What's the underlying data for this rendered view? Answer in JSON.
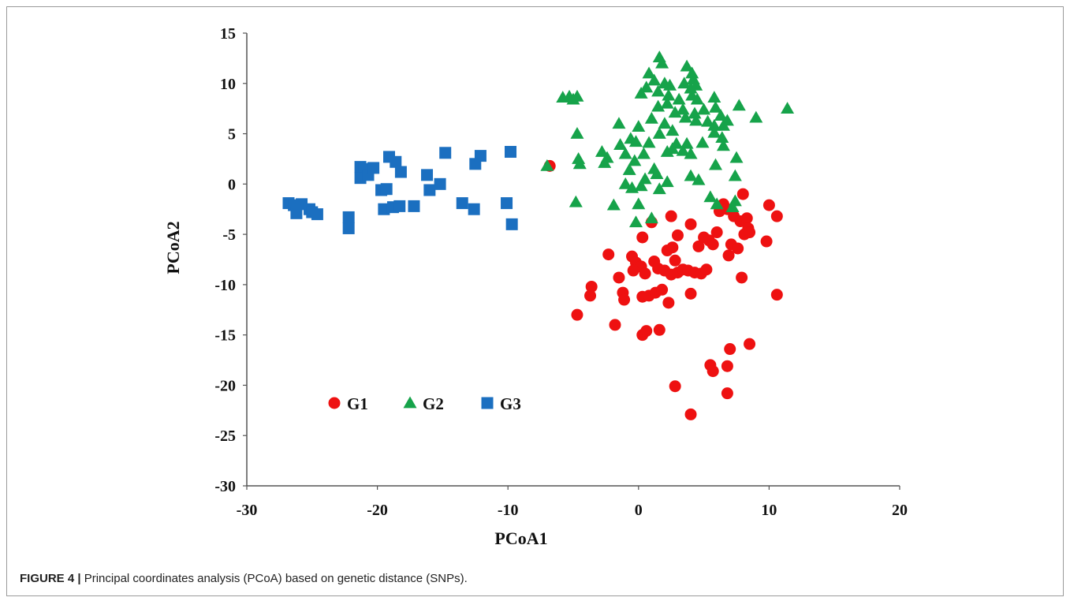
{
  "caption": {
    "label": "FIGURE 4 |",
    "text": " Principal coordinates analysis (PCoA) based on genetic distance (SNPs)."
  },
  "colors": {
    "G1": "#ee1111",
    "G2": "#16a34a",
    "G3": "#1b6fc0",
    "axis": "#555555"
  },
  "chart_data": {
    "type": "scatter",
    "title": "",
    "xlabel": "PCoA1",
    "ylabel": "PCoA2",
    "xlim": [
      -30,
      20
    ],
    "ylim": [
      -30,
      15
    ],
    "xticks": [
      -30,
      -20,
      -10,
      0,
      10,
      20
    ],
    "yticks": [
      15,
      10,
      5,
      0,
      -5,
      -10,
      -15,
      -20,
      -25,
      -30
    ],
    "grid": false,
    "legend": "lower-left inside plot",
    "series": [
      {
        "name": "G1",
        "marker": "circle",
        "points": [
          [
            -6.8,
            1.8
          ],
          [
            1.0,
            -3.8
          ],
          [
            2.5,
            -3.2
          ],
          [
            0.3,
            -5.3
          ],
          [
            -2.3,
            -7.0
          ],
          [
            -0.5,
            -7.2
          ],
          [
            -0.2,
            -7.8
          ],
          [
            0.2,
            -8.2
          ],
          [
            -0.4,
            -8.6
          ],
          [
            0.5,
            -8.9
          ],
          [
            1.2,
            -7.7
          ],
          [
            1.5,
            -8.4
          ],
          [
            2.0,
            -8.6
          ],
          [
            2.2,
            -6.6
          ],
          [
            2.6,
            -6.3
          ],
          [
            2.8,
            -7.6
          ],
          [
            3.0,
            -5.1
          ],
          [
            2.5,
            -9.0
          ],
          [
            3.0,
            -8.8
          ],
          [
            3.4,
            -8.5
          ],
          [
            3.8,
            -8.6
          ],
          [
            4.0,
            -4.0
          ],
          [
            4.3,
            -8.8
          ],
          [
            4.6,
            -6.2
          ],
          [
            4.8,
            -8.9
          ],
          [
            5.0,
            -5.3
          ],
          [
            5.2,
            -8.5
          ],
          [
            5.4,
            -5.6
          ],
          [
            5.7,
            -6.0
          ],
          [
            6.0,
            -4.8
          ],
          [
            6.2,
            -2.7
          ],
          [
            6.5,
            -2.0
          ],
          [
            6.8,
            -2.5
          ],
          [
            6.9,
            -7.1
          ],
          [
            7.1,
            -6.0
          ],
          [
            7.3,
            -3.2
          ],
          [
            7.6,
            -6.4
          ],
          [
            7.8,
            -3.7
          ],
          [
            7.9,
            -9.3
          ],
          [
            8.0,
            -1.0
          ],
          [
            8.1,
            -5.0
          ],
          [
            8.3,
            -3.4
          ],
          [
            8.4,
            -4.4
          ],
          [
            8.5,
            -4.8
          ],
          [
            9.8,
            -5.7
          ],
          [
            10.0,
            -2.1
          ],
          [
            10.6,
            -3.2
          ],
          [
            10.6,
            -11.0
          ],
          [
            -3.6,
            -10.2
          ],
          [
            -3.7,
            -11.1
          ],
          [
            -1.5,
            -9.3
          ],
          [
            -1.2,
            -10.8
          ],
          [
            -1.1,
            -11.5
          ],
          [
            0.3,
            -11.2
          ],
          [
            0.8,
            -11.1
          ],
          [
            1.3,
            -10.8
          ],
          [
            1.8,
            -10.5
          ],
          [
            2.3,
            -11.8
          ],
          [
            4.0,
            -10.9
          ],
          [
            -4.7,
            -13.0
          ],
          [
            -1.8,
            -14.0
          ],
          [
            0.3,
            -15.0
          ],
          [
            0.6,
            -14.6
          ],
          [
            1.6,
            -14.5
          ],
          [
            5.5,
            -18.0
          ],
          [
            5.7,
            -18.6
          ],
          [
            6.8,
            -18.1
          ],
          [
            7.0,
            -16.4
          ],
          [
            8.5,
            -15.9
          ],
          [
            2.8,
            -20.1
          ],
          [
            6.8,
            -20.8
          ],
          [
            4.0,
            -22.9
          ]
        ]
      },
      {
        "name": "G2",
        "marker": "triangle",
        "points": [
          [
            -5.8,
            8.6
          ],
          [
            -5.3,
            8.7
          ],
          [
            -5.0,
            8.4
          ],
          [
            -4.7,
            8.7
          ],
          [
            1.6,
            12.6
          ],
          [
            1.8,
            12.0
          ],
          [
            3.7,
            11.7
          ],
          [
            4.1,
            11.0
          ],
          [
            4.2,
            10.4
          ],
          [
            0.8,
            11.0
          ],
          [
            1.2,
            10.3
          ],
          [
            2.0,
            10.0
          ],
          [
            2.4,
            9.8
          ],
          [
            3.5,
            10.0
          ],
          [
            4.0,
            9.5
          ],
          [
            4.4,
            9.8
          ],
          [
            0.2,
            9.0
          ],
          [
            0.6,
            9.6
          ],
          [
            1.5,
            9.2
          ],
          [
            2.3,
            8.8
          ],
          [
            3.1,
            8.4
          ],
          [
            4.1,
            8.8
          ],
          [
            4.5,
            8.4
          ],
          [
            5.8,
            8.6
          ],
          [
            11.4,
            7.5
          ],
          [
            2.2,
            8.0
          ],
          [
            1.5,
            7.7
          ],
          [
            2.8,
            7.1
          ],
          [
            3.4,
            7.4
          ],
          [
            4.3,
            7.0
          ],
          [
            5.0,
            7.4
          ],
          [
            5.9,
            7.6
          ],
          [
            6.3,
            6.8
          ],
          [
            6.8,
            6.3
          ],
          [
            7.7,
            7.8
          ],
          [
            9.0,
            6.6
          ],
          [
            1.0,
            6.5
          ],
          [
            2.0,
            6.0
          ],
          [
            3.6,
            6.6
          ],
          [
            4.4,
            6.3
          ],
          [
            5.3,
            6.2
          ],
          [
            5.8,
            5.8
          ],
          [
            6.5,
            5.8
          ],
          [
            -1.5,
            6.0
          ],
          [
            -4.7,
            5.0
          ],
          [
            0.0,
            5.7
          ],
          [
            1.6,
            5.0
          ],
          [
            2.6,
            5.3
          ],
          [
            5.8,
            5.1
          ],
          [
            6.4,
            4.6
          ],
          [
            -0.6,
            4.5
          ],
          [
            -0.2,
            4.2
          ],
          [
            0.8,
            4.1
          ],
          [
            -1.4,
            3.9
          ],
          [
            2.9,
            4.0
          ],
          [
            3.7,
            4.0
          ],
          [
            4.9,
            4.1
          ],
          [
            2.2,
            3.2
          ],
          [
            2.6,
            3.5
          ],
          [
            3.4,
            3.3
          ],
          [
            4.0,
            3.0
          ],
          [
            6.5,
            3.8
          ],
          [
            -2.8,
            3.2
          ],
          [
            -1.0,
            3.0
          ],
          [
            0.4,
            3.0
          ],
          [
            -4.6,
            2.5
          ],
          [
            -2.4,
            2.6
          ],
          [
            -0.3,
            2.3
          ],
          [
            -2.6,
            2.1
          ],
          [
            -4.5,
            2.0
          ],
          [
            1.2,
            1.5
          ],
          [
            5.9,
            1.9
          ],
          [
            7.5,
            2.6
          ],
          [
            -7.0,
            1.8
          ],
          [
            -0.7,
            1.4
          ],
          [
            1.4,
            1.0
          ],
          [
            4.0,
            0.8
          ],
          [
            7.4,
            0.8
          ],
          [
            4.6,
            0.4
          ],
          [
            0.5,
            0.5
          ],
          [
            2.2,
            0.2
          ],
          [
            -1.0,
            0.0
          ],
          [
            -0.5,
            -0.4
          ],
          [
            0.2,
            -0.2
          ],
          [
            1.6,
            -0.5
          ],
          [
            5.5,
            -1.3
          ],
          [
            7.4,
            -1.7
          ],
          [
            -4.8,
            -1.8
          ],
          [
            -1.9,
            -2.1
          ],
          [
            0.0,
            -2.0
          ],
          [
            6.0,
            -2.0
          ],
          [
            7.2,
            -2.3
          ],
          [
            1.0,
            -3.4
          ],
          [
            -0.2,
            -3.8
          ]
        ]
      },
      {
        "name": "G3",
        "marker": "square",
        "points": [
          [
            -26.8,
            -1.9
          ],
          [
            -26.4,
            -2.1
          ],
          [
            -25.8,
            -2.0
          ],
          [
            -26.2,
            -2.9
          ],
          [
            -25.2,
            -2.5
          ],
          [
            -25.0,
            -2.8
          ],
          [
            -24.6,
            -3.0
          ],
          [
            -22.2,
            -3.3
          ],
          [
            -22.2,
            -4.4
          ],
          [
            -21.3,
            1.7
          ],
          [
            -21.0,
            1.5
          ],
          [
            -21.3,
            0.6
          ],
          [
            -20.7,
            0.9
          ],
          [
            -20.3,
            1.6
          ],
          [
            -19.7,
            -0.6
          ],
          [
            -19.3,
            -0.5
          ],
          [
            -19.5,
            -2.5
          ],
          [
            -19.1,
            2.7
          ],
          [
            -18.8,
            -2.3
          ],
          [
            -18.6,
            2.2
          ],
          [
            -18.3,
            -2.2
          ],
          [
            -18.2,
            1.2
          ],
          [
            -17.2,
            -2.2
          ],
          [
            -16.2,
            0.9
          ],
          [
            -16.0,
            -0.6
          ],
          [
            -15.2,
            0.0
          ],
          [
            -14.8,
            3.1
          ],
          [
            -13.5,
            -1.9
          ],
          [
            -12.6,
            -2.5
          ],
          [
            -12.5,
            2.0
          ],
          [
            -12.1,
            2.8
          ],
          [
            -10.1,
            -1.9
          ],
          [
            -9.8,
            3.2
          ],
          [
            -9.7,
            -4.0
          ]
        ]
      }
    ]
  }
}
